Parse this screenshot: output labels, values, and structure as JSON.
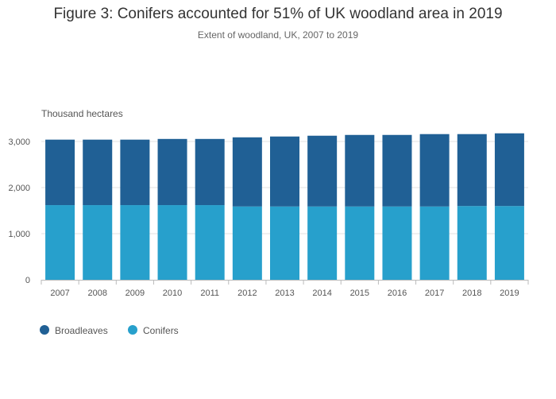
{
  "chart_data": {
    "type": "bar",
    "stacked": true,
    "title": "Figure 3: Conifers accounted for 51% of UK woodland area in 2019",
    "subtitle": "Extent of woodland, UK, 2007 to 2019",
    "ylabel": "Thousand hectares",
    "xlabel": "",
    "ylim": [
      0,
      3200
    ],
    "yticks": [
      "0",
      "1,000",
      "2,000",
      "3,000"
    ],
    "ytick_values": [
      0,
      1000,
      2000,
      3000
    ],
    "grid": true,
    "legend_position": "bottom-left",
    "categories": [
      "2007",
      "2008",
      "2009",
      "2010",
      "2011",
      "2012",
      "2013",
      "2014",
      "2015",
      "2016",
      "2017",
      "2018",
      "2019"
    ],
    "series": [
      {
        "name": "Conifers",
        "color": "#27a0cc",
        "values": [
          1620,
          1620,
          1620,
          1620,
          1620,
          1590,
          1590,
          1590,
          1590,
          1590,
          1590,
          1600,
          1600
        ]
      },
      {
        "name": "Broadleaves",
        "color": "#206095",
        "values": [
          1420,
          1420,
          1420,
          1435,
          1435,
          1500,
          1518,
          1535,
          1552,
          1552,
          1570,
          1560,
          1577
        ]
      }
    ],
    "legend": [
      "Broadleaves",
      "Conifers"
    ]
  }
}
